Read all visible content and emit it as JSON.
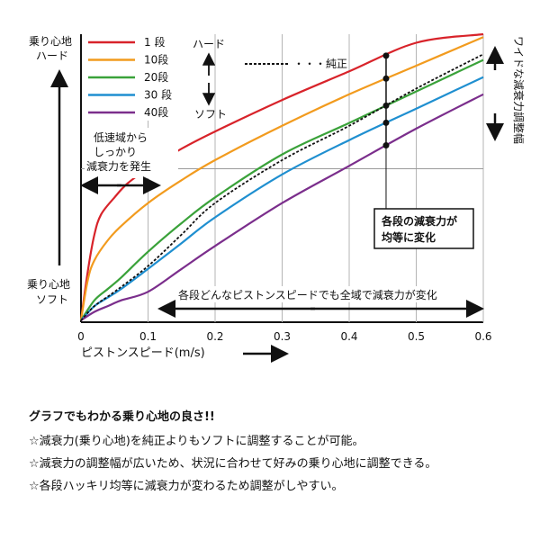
{
  "chart_data": {
    "type": "line",
    "title": "",
    "xlabel": "ピストンスピード(m/s)",
    "ylabel_top": "乗り心地\nハード",
    "ylabel_bottom": "乗り心地\nソフト",
    "xlim": [
      0,
      0.6
    ],
    "xticks": [
      0,
      0.1,
      0.2,
      0.3,
      0.4,
      0.5,
      0.6
    ],
    "xtick_labels": [
      "0",
      "0.1",
      "0.2",
      "0.3",
      "0.4",
      "0.5",
      "0.6"
    ],
    "ylim": [
      0,
      1
    ],
    "grid": "vertical",
    "series": [
      {
        "name": "1 段",
        "color": "#d8232a",
        "x": [
          0,
          0.01,
          0.02,
          0.03,
          0.05,
          0.07,
          0.1,
          0.15,
          0.2,
          0.3,
          0.4,
          0.5,
          0.6
        ],
        "y": [
          0,
          0.17,
          0.3,
          0.37,
          0.43,
          0.48,
          0.53,
          0.6,
          0.66,
          0.77,
          0.87,
          0.97,
          1.07
        ]
      },
      {
        "name": "10段",
        "color": "#f29b1e",
        "x": [
          0,
          0.01,
          0.02,
          0.04,
          0.06,
          0.1,
          0.15,
          0.2,
          0.3,
          0.4,
          0.5,
          0.6
        ],
        "y": [
          0,
          0.14,
          0.21,
          0.28,
          0.33,
          0.41,
          0.49,
          0.56,
          0.68,
          0.79,
          0.89,
          0.99
        ]
      },
      {
        "name": "20段",
        "color": "#3aa23a",
        "x": [
          0,
          0.02,
          0.04,
          0.06,
          0.1,
          0.15,
          0.2,
          0.3,
          0.4,
          0.5,
          0.6
        ],
        "y": [
          0,
          0.07,
          0.11,
          0.15,
          0.24,
          0.34,
          0.43,
          0.58,
          0.69,
          0.8,
          0.91
        ]
      },
      {
        "name": "30 段",
        "color": "#1f8fd0",
        "x": [
          0,
          0.02,
          0.04,
          0.06,
          0.1,
          0.15,
          0.2,
          0.3,
          0.4,
          0.5,
          0.6
        ],
        "y": [
          0,
          0.05,
          0.08,
          0.11,
          0.18,
          0.27,
          0.36,
          0.51,
          0.63,
          0.74,
          0.85
        ]
      },
      {
        "name": "40段",
        "color": "#7b2e8c",
        "x": [
          0,
          0.02,
          0.04,
          0.06,
          0.1,
          0.15,
          0.2,
          0.3,
          0.4,
          0.5,
          0.6
        ],
        "y": [
          0,
          0.03,
          0.05,
          0.07,
          0.1,
          0.18,
          0.26,
          0.41,
          0.54,
          0.67,
          0.79
        ]
      },
      {
        "name": "純正",
        "color": "#111111",
        "dashed": true,
        "x": [
          0,
          0.02,
          0.05,
          0.1,
          0.15,
          0.2,
          0.3,
          0.4,
          0.5,
          0.6
        ],
        "y": [
          0,
          0.05,
          0.1,
          0.19,
          0.3,
          0.41,
          0.56,
          0.68,
          0.81,
          0.93
        ]
      }
    ],
    "highlight_x": 0.455,
    "reference_y": 0.53,
    "legend_scale": {
      "hard": "ハード",
      "soft": "ソフト"
    },
    "annotations": {
      "low_speed": [
        "低速域から",
        "しっかり",
        "減衰力を発生"
      ],
      "all_range": "各段どんなピストンスピードでも全域で減衰力が変化",
      "even_change": [
        "各段の減衰力が",
        "均等に変化"
      ],
      "wide_range": "ワイドな減衰力調整幅"
    }
  },
  "notes": {
    "heading": "グラフでもわかる乗り心地の良さ!!",
    "lines": [
      "☆減衰力(乗り心地)を純正よりもソフトに調整することが可能。",
      "☆減衰力の調整幅が広いため、状況に合わせて好みの乗り心地に調整できる。",
      "☆各段ハッキリ均等に減衰力が変わるため調整がしやすい。"
    ]
  }
}
